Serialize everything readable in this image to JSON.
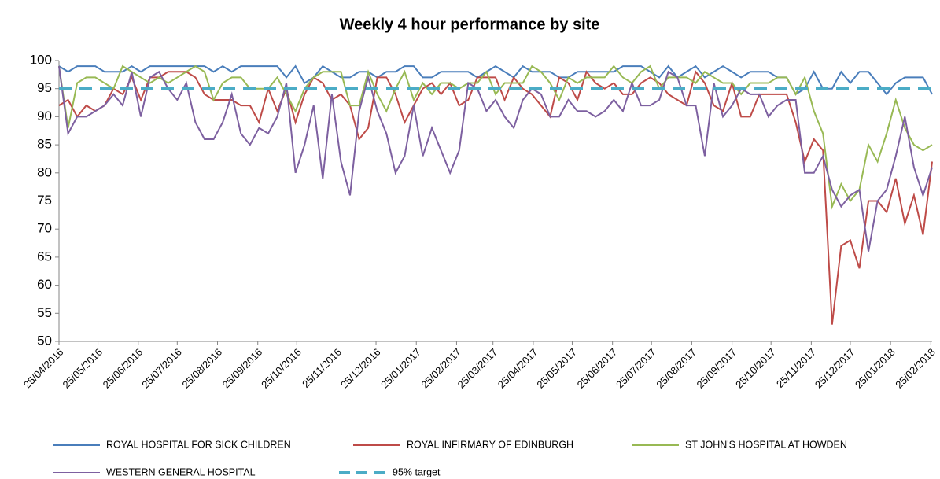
{
  "chart_data": {
    "type": "line",
    "title": "Weekly 4 hour performance by site",
    "x": [
      "25/04/2016",
      "02/05/2016",
      "09/05/2016",
      "16/05/2016",
      "23/05/2016",
      "30/05/2016",
      "06/06/2016",
      "13/06/2016",
      "20/06/2016",
      "27/06/2016",
      "04/07/2016",
      "11/07/2016",
      "18/07/2016",
      "25/07/2016",
      "01/08/2016",
      "08/08/2016",
      "15/08/2016",
      "22/08/2016",
      "29/08/2016",
      "05/09/2016",
      "12/09/2016",
      "19/09/2016",
      "26/09/2016",
      "03/10/2016",
      "10/10/2016",
      "17/10/2016",
      "24/10/2016",
      "31/10/2016",
      "07/11/2016",
      "14/11/2016",
      "21/11/2016",
      "28/11/2016",
      "05/12/2016",
      "12/12/2016",
      "19/12/2016",
      "26/12/2016",
      "02/01/2017",
      "09/01/2017",
      "16/01/2017",
      "23/01/2017",
      "30/01/2017",
      "06/02/2017",
      "13/02/2017",
      "20/02/2017",
      "27/02/2017",
      "06/03/2017",
      "13/03/2017",
      "20/03/2017",
      "27/03/2017",
      "03/04/2017",
      "10/04/2017",
      "17/04/2017",
      "24/04/2017",
      "01/05/2017",
      "08/05/2017",
      "15/05/2017",
      "22/05/2017",
      "29/05/2017",
      "05/06/2017",
      "12/06/2017",
      "19/06/2017",
      "26/06/2017",
      "03/07/2017",
      "10/07/2017",
      "17/07/2017",
      "24/07/2017",
      "31/07/2017",
      "07/08/2017",
      "14/08/2017",
      "21/08/2017",
      "28/08/2017",
      "04/09/2017",
      "11/09/2017",
      "18/09/2017",
      "25/09/2017",
      "02/10/2017",
      "09/10/2017",
      "16/10/2017",
      "23/10/2017",
      "30/10/2017",
      "06/11/2017",
      "13/11/2017",
      "20/11/2017",
      "27/11/2017",
      "04/12/2017",
      "11/12/2017",
      "18/12/2017",
      "25/12/2017",
      "01/01/2018",
      "08/01/2018",
      "15/01/2018",
      "22/01/2018",
      "29/01/2018",
      "05/02/2018",
      "12/02/2018",
      "19/02/2018",
      "26/02/2018"
    ],
    "series": [
      {
        "name": "ROYAL HOSPITAL FOR SICK CHILDREN",
        "color": "#4a7ebb",
        "values": [
          99,
          98,
          99,
          99,
          99,
          98,
          98,
          98,
          99,
          98,
          99,
          99,
          99,
          99,
          99,
          99,
          99,
          98,
          99,
          98,
          99,
          99,
          99,
          99,
          99,
          97,
          99,
          96,
          97,
          99,
          98,
          97,
          97,
          98,
          98,
          97,
          98,
          98,
          99,
          99,
          97,
          97,
          98,
          98,
          98,
          98,
          97,
          98,
          99,
          98,
          97,
          99,
          98,
          98,
          98,
          97,
          97,
          98,
          98,
          98,
          98,
          98,
          99,
          99,
          99,
          98,
          97,
          99,
          97,
          98,
          99,
          97,
          98,
          99,
          98,
          97,
          98,
          98,
          98,
          97,
          97,
          94,
          95,
          98,
          95,
          95,
          98,
          96,
          98,
          98,
          96,
          94,
          96,
          97,
          97,
          97,
          94
        ]
      },
      {
        "name": "ROYAL INFIRMARY OF EDINBURGH",
        "color": "#be4b48",
        "values": [
          92,
          93,
          90,
          92,
          91,
          92,
          95,
          94,
          97,
          93,
          97,
          97,
          98,
          98,
          98,
          97,
          94,
          93,
          93,
          93,
          92,
          92,
          89,
          95,
          91,
          95,
          89,
          94,
          97,
          96,
          93,
          94,
          92,
          86,
          88,
          97,
          97,
          94,
          89,
          92,
          95,
          96,
          94,
          96,
          92,
          93,
          97,
          97,
          97,
          93,
          97,
          95,
          94,
          92,
          90,
          97,
          96,
          93,
          98,
          96,
          95,
          96,
          94,
          94,
          96,
          97,
          96,
          94,
          93,
          92,
          98,
          96,
          92,
          91,
          96,
          90,
          90,
          94,
          94,
          94,
          94,
          89,
          82,
          86,
          84,
          53,
          67,
          68,
          63,
          75,
          75,
          73,
          79,
          71,
          76,
          69,
          82
        ]
      },
      {
        "name": "ST JOHN'S HOSPITAL AT HOWDEN",
        "color": "#98b954",
        "values": [
          99,
          88,
          96,
          97,
          97,
          96,
          95,
          99,
          98,
          97,
          96,
          97,
          96,
          97,
          98,
          99,
          98,
          93,
          96,
          97,
          97,
          95,
          95,
          95,
          97,
          94,
          91,
          95,
          97,
          98,
          98,
          98,
          92,
          92,
          98,
          94,
          91,
          95,
          98,
          93,
          96,
          94,
          96,
          96,
          95,
          96,
          96,
          98,
          94,
          96,
          96,
          96,
          99,
          98,
          96,
          93,
          97,
          96,
          97,
          97,
          97,
          99,
          97,
          96,
          98,
          99,
          95,
          97,
          97,
          97,
          96,
          98,
          97,
          96,
          96,
          94,
          96,
          96,
          96,
          97,
          97,
          94,
          97,
          91,
          87,
          74,
          78,
          75,
          77,
          85,
          82,
          87,
          93,
          88,
          85,
          84,
          85
        ]
      },
      {
        "name": "WESTERN GENERAL HOSPITAL",
        "color": "#7d60a0",
        "values": [
          99,
          87,
          90,
          90,
          91,
          92,
          94,
          92,
          98,
          90,
          97,
          98,
          95,
          93,
          96,
          89,
          86,
          86,
          89,
          94,
          87,
          85,
          88,
          87,
          90,
          96,
          80,
          85,
          92,
          79,
          94,
          82,
          76,
          91,
          97,
          91,
          87,
          80,
          83,
          92,
          83,
          88,
          84,
          80,
          84,
          96,
          95,
          91,
          93,
          90,
          88,
          93,
          95,
          94,
          90,
          90,
          93,
          91,
          91,
          90,
          91,
          93,
          91,
          96,
          92,
          92,
          93,
          98,
          97,
          92,
          92,
          83,
          96,
          90,
          92,
          95,
          94,
          94,
          90,
          92,
          93,
          93,
          80,
          80,
          83,
          77,
          74,
          76,
          77,
          66,
          75,
          77,
          83,
          90,
          81,
          76,
          81
        ]
      }
    ],
    "target": {
      "name": "95% target",
      "value": 95,
      "color": "#4bacc6"
    },
    "xlim": [
      "25/04/2016",
      "26/02/2018"
    ],
    "xticks": [
      "25/04/2016",
      "25/05/2016",
      "25/06/2016",
      "25/07/2016",
      "25/08/2016",
      "25/09/2016",
      "25/10/2016",
      "25/11/2016",
      "25/12/2016",
      "25/01/2017",
      "25/02/2017",
      "25/03/2017",
      "25/04/2017",
      "25/05/2017",
      "25/06/2017",
      "25/07/2017",
      "25/08/2017",
      "25/09/2017",
      "25/10/2017",
      "25/11/2017",
      "25/12/2017",
      "25/01/2018",
      "25/02/2018"
    ],
    "ylim": [
      50,
      100
    ],
    "yticks": [
      50,
      55,
      60,
      65,
      70,
      75,
      80,
      85,
      90,
      95,
      100
    ],
    "legend": "bottom"
  }
}
